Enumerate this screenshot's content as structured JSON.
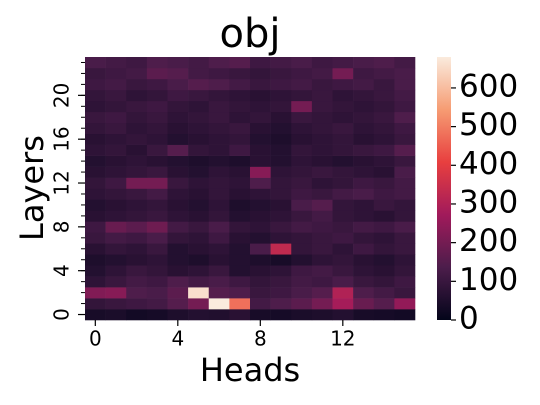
{
  "chart_data": {
    "type": "heatmap",
    "title": "obj",
    "xlabel": "Heads",
    "ylabel": "Layers",
    "x": [
      0,
      1,
      2,
      3,
      4,
      5,
      6,
      7,
      8,
      9,
      10,
      11,
      12,
      13,
      14,
      15
    ],
    "y": [
      0,
      1,
      2,
      3,
      4,
      5,
      6,
      7,
      8,
      9,
      10,
      11,
      12,
      13,
      14,
      15,
      16,
      17,
      18,
      19,
      20,
      21,
      22,
      23
    ],
    "xlim": [
      -0.5,
      15.5
    ],
    "ylim": [
      -0.5,
      23.5
    ],
    "xticks": [
      0,
      4,
      8,
      12
    ],
    "yticks": [
      0,
      4,
      8,
      12,
      16,
      20
    ],
    "values": [
      [
        40,
        45,
        30,
        35,
        50,
        60,
        55,
        70,
        40,
        35,
        45,
        50,
        60,
        40,
        35,
        30
      ],
      [
        90,
        100,
        110,
        120,
        150,
        200,
        680,
        480,
        120,
        140,
        160,
        200,
        280,
        180,
        150,
        250
      ],
      [
        220,
        230,
        140,
        130,
        160,
        660,
        150,
        140,
        100,
        110,
        130,
        150,
        300,
        140,
        120,
        100
      ],
      [
        80,
        100,
        120,
        110,
        140,
        120,
        130,
        110,
        90,
        100,
        120,
        110,
        130,
        100,
        90,
        110
      ],
      [
        60,
        80,
        100,
        90,
        70,
        80,
        100,
        60,
        70,
        80,
        110,
        120,
        100,
        80,
        70,
        90
      ],
      [
        50,
        60,
        70,
        80,
        60,
        50,
        70,
        60,
        50,
        40,
        60,
        80,
        90,
        70,
        60,
        80
      ],
      [
        70,
        90,
        80,
        100,
        60,
        70,
        80,
        60,
        130,
        330,
        90,
        100,
        80,
        110,
        90,
        100
      ],
      [
        100,
        120,
        110,
        130,
        90,
        80,
        110,
        70,
        60,
        80,
        90,
        100,
        110,
        90,
        80,
        100
      ],
      [
        110,
        180,
        160,
        190,
        120,
        100,
        130,
        90,
        80,
        100,
        120,
        110,
        100,
        120,
        110,
        130
      ],
      [
        70,
        80,
        90,
        100,
        80,
        70,
        90,
        60,
        70,
        80,
        100,
        120,
        90,
        80,
        70,
        90
      ],
      [
        60,
        70,
        80,
        90,
        70,
        60,
        80,
        50,
        60,
        70,
        130,
        150,
        90,
        80,
        100,
        90
      ],
      [
        80,
        90,
        100,
        120,
        80,
        70,
        90,
        70,
        80,
        90,
        110,
        100,
        120,
        130,
        110,
        120
      ],
      [
        90,
        110,
        200,
        200,
        100,
        80,
        90,
        80,
        140,
        90,
        100,
        80,
        90,
        110,
        100,
        120
      ],
      [
        70,
        80,
        90,
        100,
        70,
        60,
        80,
        70,
        230,
        80,
        90,
        100,
        90,
        80,
        70,
        130
      ],
      [
        60,
        70,
        80,
        70,
        60,
        50,
        60,
        50,
        70,
        60,
        80,
        70,
        60,
        70,
        80,
        100
      ],
      [
        80,
        90,
        70,
        100,
        150,
        90,
        80,
        110,
        70,
        60,
        90,
        80,
        90,
        100,
        110,
        150
      ],
      [
        70,
        80,
        90,
        80,
        60,
        70,
        80,
        90,
        60,
        50,
        70,
        80,
        90,
        70,
        80,
        100
      ],
      [
        90,
        100,
        80,
        90,
        70,
        80,
        90,
        100,
        70,
        60,
        80,
        90,
        100,
        80,
        90,
        110
      ],
      [
        100,
        110,
        90,
        100,
        80,
        90,
        100,
        80,
        90,
        70,
        100,
        90,
        80,
        90,
        100,
        140
      ],
      [
        80,
        90,
        100,
        110,
        90,
        80,
        100,
        90,
        80,
        90,
        200,
        100,
        90,
        80,
        90,
        110
      ],
      [
        90,
        100,
        80,
        90,
        110,
        100,
        90,
        80,
        70,
        80,
        90,
        100,
        80,
        90,
        100,
        120
      ],
      [
        110,
        120,
        100,
        110,
        130,
        150,
        140,
        120,
        100,
        110,
        120,
        100,
        110,
        120,
        100,
        130
      ],
      [
        100,
        110,
        120,
        160,
        150,
        120,
        110,
        100,
        90,
        100,
        110,
        120,
        200,
        110,
        120,
        130
      ],
      [
        130,
        120,
        110,
        140,
        130,
        120,
        140,
        150,
        110,
        120,
        130,
        110,
        120,
        130,
        140,
        120
      ]
    ],
    "clim": [
      0,
      680
    ],
    "cticks": [
      0,
      100,
      200,
      300,
      400,
      500,
      600
    ],
    "colormap": [
      "#03051a",
      "#4c1d4b",
      "#a11a5b",
      "#e83f3f",
      "#f69c73",
      "#faebdd"
    ]
  }
}
